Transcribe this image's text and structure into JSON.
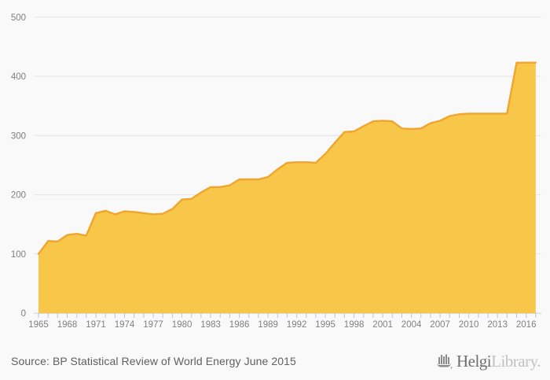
{
  "chart_data": {
    "type": "area",
    "title": "",
    "xlabel": "",
    "ylabel": "",
    "x": [
      1965,
      1966,
      1967,
      1968,
      1969,
      1970,
      1971,
      1972,
      1973,
      1974,
      1975,
      1976,
      1977,
      1978,
      1979,
      1980,
      1981,
      1982,
      1983,
      1984,
      1985,
      1986,
      1987,
      1988,
      1989,
      1990,
      1991,
      1992,
      1993,
      1994,
      1995,
      1996,
      1997,
      1998,
      1999,
      2000,
      2001,
      2002,
      2003,
      2004,
      2005,
      2006,
      2007,
      2008,
      2009,
      2010,
      2011,
      2012,
      2013,
      2014,
      2015,
      2016,
      2017
    ],
    "values": [
      100,
      122,
      121,
      132,
      134,
      131,
      169,
      173,
      167,
      172,
      171,
      169,
      167,
      168,
      176,
      192,
      193,
      204,
      213,
      213,
      216,
      226,
      226,
      226,
      230,
      243,
      254,
      255,
      255,
      254,
      269,
      288,
      306,
      307,
      316,
      324,
      325,
      324,
      312,
      311,
      312,
      321,
      325,
      333,
      336,
      337,
      337,
      337,
      337,
      337,
      423,
      423,
      423
    ],
    "ylim": [
      0,
      500
    ],
    "yticks": [
      0,
      100,
      200,
      300,
      400,
      500
    ],
    "xtick_labels": [
      "1965",
      "1968",
      "1971",
      "1974",
      "1977",
      "1980",
      "1983",
      "1986",
      "1989",
      "1992",
      "1995",
      "1998",
      "2001",
      "2004",
      "2007",
      "2010",
      "2013",
      "2016"
    ],
    "grid": "horizontal",
    "legend": "none",
    "colors": {
      "area_fill": "#F8C33E",
      "area_outline": "#F0A52F",
      "background": "#F9F9F9",
      "gridline": "#E3E3E3",
      "baseline": "#CFCFCF",
      "tick": "#BCC6D8",
      "axis_label": "#808080"
    }
  },
  "footer": {
    "source": "Source: BP Statistical Review of World Energy June 2015"
  },
  "logo": {
    "brand_primary": "Helgi",
    "brand_secondary": "Library."
  }
}
